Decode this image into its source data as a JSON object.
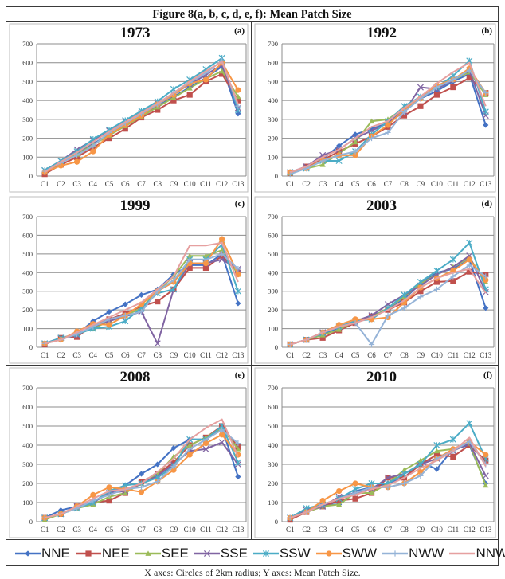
{
  "figure_title": "Figure 8(a, b, c, d, e, f): Mean Patch Size",
  "caption": "X axes: Circles of 2km radius; Y axes: Mean Patch Size.",
  "legend": [
    {
      "name": "NNE",
      "color": "#4472C4",
      "marker": "diamond"
    },
    {
      "name": "NEE",
      "color": "#C0504D",
      "marker": "square"
    },
    {
      "name": "SEE",
      "color": "#9BBB59",
      "marker": "triangle"
    },
    {
      "name": "SSE",
      "color": "#8064A2",
      "marker": "x"
    },
    {
      "name": "SSW",
      "color": "#4BACC6",
      "marker": "star"
    },
    {
      "name": "SWW",
      "color": "#F79646",
      "marker": "circle"
    },
    {
      "name": "NWW",
      "color": "#95B3D7",
      "marker": "plus"
    },
    {
      "name": "NNW",
      "color": "#E6A0A0",
      "marker": "none"
    }
  ],
  "chart_data": [
    {
      "type": "line",
      "title": "1973",
      "panel": "(a)",
      "categories": [
        "C1",
        "C2",
        "C3",
        "C4",
        "C5",
        "C6",
        "C7",
        "C8",
        "C9",
        "C10",
        "C11",
        "C12",
        "C13"
      ],
      "yticks": [
        0,
        100,
        200,
        300,
        400,
        500,
        600,
        700
      ],
      "ylim": [
        0,
        700
      ],
      "grid": true,
      "series": [
        {
          "name": "NNE",
          "values": [
            20,
            70,
            120,
            170,
            220,
            270,
            320,
            370,
            420,
            470,
            520,
            580,
            330
          ]
        },
        {
          "name": "NEE",
          "values": [
            10,
            60,
            100,
            150,
            200,
            250,
            310,
            350,
            400,
            430,
            500,
            540,
            400
          ]
        },
        {
          "name": "SEE",
          "values": [
            20,
            70,
            115,
            165,
            215,
            265,
            315,
            365,
            415,
            465,
            515,
            555,
            420
          ]
        },
        {
          "name": "SSE",
          "values": [
            30,
            80,
            140,
            190,
            240,
            290,
            335,
            385,
            435,
            485,
            535,
            590,
            360
          ]
        },
        {
          "name": "SSW",
          "values": [
            30,
            80,
            130,
            195,
            245,
            295,
            345,
            395,
            460,
            510,
            565,
            625,
            350
          ]
        },
        {
          "name": "SWW",
          "values": [
            20,
            55,
            75,
            130,
            220,
            270,
            320,
            380,
            430,
            490,
            510,
            600,
            455
          ]
        },
        {
          "name": "NWW",
          "values": [
            25,
            70,
            110,
            160,
            230,
            280,
            330,
            380,
            440,
            495,
            545,
            610,
            370
          ]
        },
        {
          "name": "NNW",
          "values": [
            20,
            75,
            125,
            180,
            235,
            285,
            335,
            385,
            440,
            500,
            555,
            605,
            380
          ]
        }
      ]
    },
    {
      "type": "line",
      "title": "1992",
      "panel": "(b)",
      "categories": [
        "C1",
        "C2",
        "C3",
        "C4",
        "C5",
        "C6",
        "C7",
        "C8",
        "C9",
        "C10",
        "C11",
        "C12",
        "C13"
      ],
      "yticks": [
        0,
        100,
        200,
        300,
        400,
        500,
        600,
        700
      ],
      "ylim": [
        0,
        700
      ],
      "grid": true,
      "series": [
        {
          "name": "NNE",
          "values": [
            20,
            50,
            90,
            160,
            220,
            250,
            280,
            350,
            410,
            450,
            500,
            540,
            270
          ]
        },
        {
          "name": "NEE",
          "values": [
            15,
            50,
            85,
            130,
            170,
            210,
            260,
            320,
            370,
            430,
            470,
            520,
            440
          ]
        },
        {
          "name": "SEE",
          "values": [
            15,
            40,
            60,
            120,
            180,
            290,
            300,
            360,
            410,
            470,
            510,
            550,
            430
          ]
        },
        {
          "name": "SSE",
          "values": [
            20,
            50,
            110,
            140,
            200,
            240,
            280,
            340,
            470,
            460,
            510,
            560,
            320
          ]
        },
        {
          "name": "SSW",
          "values": [
            20,
            40,
            80,
            80,
            130,
            220,
            290,
            370,
            420,
            470,
            530,
            610,
            340
          ]
        },
        {
          "name": "SWW",
          "values": [
            20,
            40,
            85,
            110,
            110,
            210,
            270,
            350,
            410,
            480,
            510,
            570,
            440
          ]
        },
        {
          "name": "NWW",
          "values": [
            10,
            40,
            80,
            110,
            130,
            200,
            230,
            340,
            410,
            470,
            510,
            560,
            440
          ]
        },
        {
          "name": "NNW",
          "values": [
            20,
            50,
            100,
            140,
            200,
            260,
            290,
            360,
            420,
            490,
            550,
            600,
            370
          ]
        }
      ]
    },
    {
      "type": "line",
      "title": "1999",
      "panel": "(c)",
      "categories": [
        "C1",
        "C2",
        "C3",
        "C4",
        "C5",
        "C6",
        "C7",
        "C8",
        "C9",
        "C10",
        "C11",
        "C12",
        "C13"
      ],
      "yticks": [
        0,
        100,
        200,
        300,
        400,
        500,
        600,
        700
      ],
      "ylim": [
        0,
        700
      ],
      "grid": true,
      "series": [
        {
          "name": "NNE",
          "values": [
            20,
            50,
            70,
            140,
            190,
            230,
            280,
            310,
            390,
            440,
            440,
            500,
            235
          ]
        },
        {
          "name": "NEE",
          "values": [
            15,
            50,
            55,
            120,
            150,
            180,
            220,
            245,
            310,
            425,
            425,
            490,
            400
          ]
        },
        {
          "name": "SEE",
          "values": [
            20,
            45,
            70,
            100,
            140,
            170,
            210,
            300,
            380,
            490,
            490,
            520,
            390
          ]
        },
        {
          "name": "SSE",
          "values": [
            20,
            50,
            65,
            110,
            140,
            165,
            190,
            20,
            310,
            450,
            450,
            470,
            420
          ]
        },
        {
          "name": "SSW",
          "values": [
            20,
            50,
            70,
            100,
            110,
            140,
            210,
            290,
            310,
            470,
            470,
            550,
            300
          ]
        },
        {
          "name": "SWW",
          "values": [
            20,
            40,
            85,
            125,
            120,
            170,
            230,
            300,
            350,
            450,
            450,
            580,
            390
          ]
        },
        {
          "name": "NWW",
          "values": [
            20,
            40,
            70,
            110,
            150,
            170,
            190,
            300,
            360,
            470,
            470,
            500,
            420
          ]
        },
        {
          "name": "NNW",
          "values": [
            20,
            40,
            80,
            120,
            160,
            200,
            240,
            310,
            380,
            545,
            545,
            560,
            350
          ]
        }
      ]
    },
    {
      "type": "line",
      "title": "2003",
      "panel": "(d)",
      "categories": [
        "C1",
        "C2",
        "C3",
        "C4",
        "C5",
        "C6",
        "C7",
        "C8",
        "C9",
        "C10",
        "C11",
        "C12",
        "C13"
      ],
      "yticks": [
        0,
        100,
        200,
        300,
        400,
        500,
        600,
        700
      ],
      "ylim": [
        0,
        700
      ],
      "grid": true,
      "series": [
        {
          "name": "NNE",
          "values": [
            15,
            40,
            70,
            100,
            140,
            170,
            200,
            260,
            340,
            400,
            420,
            470,
            210
          ]
        },
        {
          "name": "NEE",
          "values": [
            15,
            40,
            50,
            90,
            130,
            165,
            200,
            240,
            300,
            350,
            355,
            405,
            390
          ]
        },
        {
          "name": "SEE",
          "values": [
            15,
            40,
            65,
            95,
            140,
            160,
            210,
            270,
            340,
            390,
            430,
            480,
            350
          ]
        },
        {
          "name": "SSE",
          "values": [
            15,
            40,
            80,
            110,
            140,
            170,
            230,
            280,
            330,
            390,
            430,
            490,
            295
          ]
        },
        {
          "name": "SSW",
          "values": [
            15,
            40,
            75,
            110,
            140,
            150,
            210,
            280,
            350,
            410,
            470,
            560,
            310
          ]
        },
        {
          "name": "SWW",
          "values": [
            15,
            40,
            80,
            120,
            150,
            150,
            160,
            240,
            320,
            370,
            410,
            470,
            360
          ]
        },
        {
          "name": "NWW",
          "values": [
            15,
            40,
            80,
            110,
            130,
            15,
            170,
            210,
            270,
            310,
            380,
            440,
            380
          ]
        },
        {
          "name": "NNW",
          "values": [
            15,
            40,
            80,
            110,
            130,
            160,
            200,
            250,
            320,
            370,
            400,
            420,
            290
          ]
        }
      ]
    },
    {
      "type": "line",
      "title": "2008",
      "panel": "(e)",
      "categories": [
        "C1",
        "C2",
        "C3",
        "C4",
        "C5",
        "C6",
        "C7",
        "C8",
        "C9",
        "C10",
        "C11",
        "C12",
        "C13"
      ],
      "yticks": [
        0,
        100,
        200,
        300,
        400,
        500,
        600,
        700
      ],
      "ylim": [
        0,
        700
      ],
      "grid": true,
      "series": [
        {
          "name": "NNE",
          "values": [
            20,
            60,
            80,
            100,
            150,
            190,
            250,
            300,
            385,
            430,
            430,
            490,
            235
          ]
        },
        {
          "name": "NEE",
          "values": [
            20,
            40,
            80,
            100,
            110,
            150,
            210,
            250,
            310,
            400,
            440,
            500,
            390
          ]
        },
        {
          "name": "SEE",
          "values": [
            10,
            40,
            70,
            90,
            130,
            150,
            200,
            250,
            340,
            400,
            440,
            490,
            380
          ]
        },
        {
          "name": "SSE",
          "values": [
            20,
            40,
            80,
            100,
            150,
            160,
            200,
            240,
            300,
            370,
            380,
            415,
            300
          ]
        },
        {
          "name": "SSW",
          "values": [
            20,
            40,
            70,
            100,
            160,
            190,
            200,
            230,
            290,
            430,
            430,
            500,
            310
          ]
        },
        {
          "name": "SWW",
          "values": [
            20,
            40,
            80,
            140,
            180,
            170,
            155,
            210,
            270,
            350,
            410,
            455,
            350
          ]
        },
        {
          "name": "NWW",
          "values": [
            20,
            40,
            70,
            110,
            140,
            170,
            180,
            210,
            290,
            380,
            430,
            480,
            410
          ]
        },
        {
          "name": "NNW",
          "values": [
            20,
            40,
            80,
            120,
            160,
            170,
            200,
            260,
            330,
            430,
            490,
            535,
            340
          ]
        }
      ]
    },
    {
      "type": "line",
      "title": "2010",
      "panel": "(f)",
      "categories": [
        "C1",
        "C2",
        "C3",
        "C4",
        "C5",
        "C6",
        "C7",
        "C8",
        "C9",
        "C10",
        "C11",
        "C12",
        "C13"
      ],
      "yticks": [
        0,
        100,
        200,
        300,
        400,
        500,
        600,
        700
      ],
      "ylim": [
        0,
        700
      ],
      "grid": true,
      "series": [
        {
          "name": "NNE",
          "values": [
            20,
            60,
            90,
            90,
            160,
            180,
            200,
            230,
            310,
            275,
            380,
            400,
            200
          ]
        },
        {
          "name": "NEE",
          "values": [
            10,
            50,
            80,
            110,
            120,
            150,
            230,
            230,
            300,
            350,
            340,
            400,
            320
          ]
        },
        {
          "name": "SEE",
          "values": [
            20,
            50,
            80,
            90,
            150,
            150,
            200,
            270,
            320,
            370,
            380,
            410,
            190
          ]
        },
        {
          "name": "SSE",
          "values": [
            20,
            60,
            80,
            130,
            150,
            170,
            230,
            250,
            300,
            330,
            370,
            410,
            240
          ]
        },
        {
          "name": "SSW",
          "values": [
            20,
            70,
            90,
            120,
            170,
            200,
            200,
            250,
            300,
            400,
            430,
            515,
            330
          ]
        },
        {
          "name": "SWW",
          "values": [
            20,
            50,
            110,
            160,
            200,
            180,
            180,
            200,
            260,
            330,
            380,
            420,
            350
          ]
        },
        {
          "name": "NWW",
          "values": [
            20,
            50,
            90,
            120,
            150,
            180,
            180,
            200,
            240,
            330,
            370,
            420,
            300
          ]
        },
        {
          "name": "NNW",
          "values": [
            20,
            50,
            90,
            120,
            140,
            170,
            190,
            230,
            280,
            320,
            370,
            440,
            290
          ]
        }
      ]
    }
  ]
}
